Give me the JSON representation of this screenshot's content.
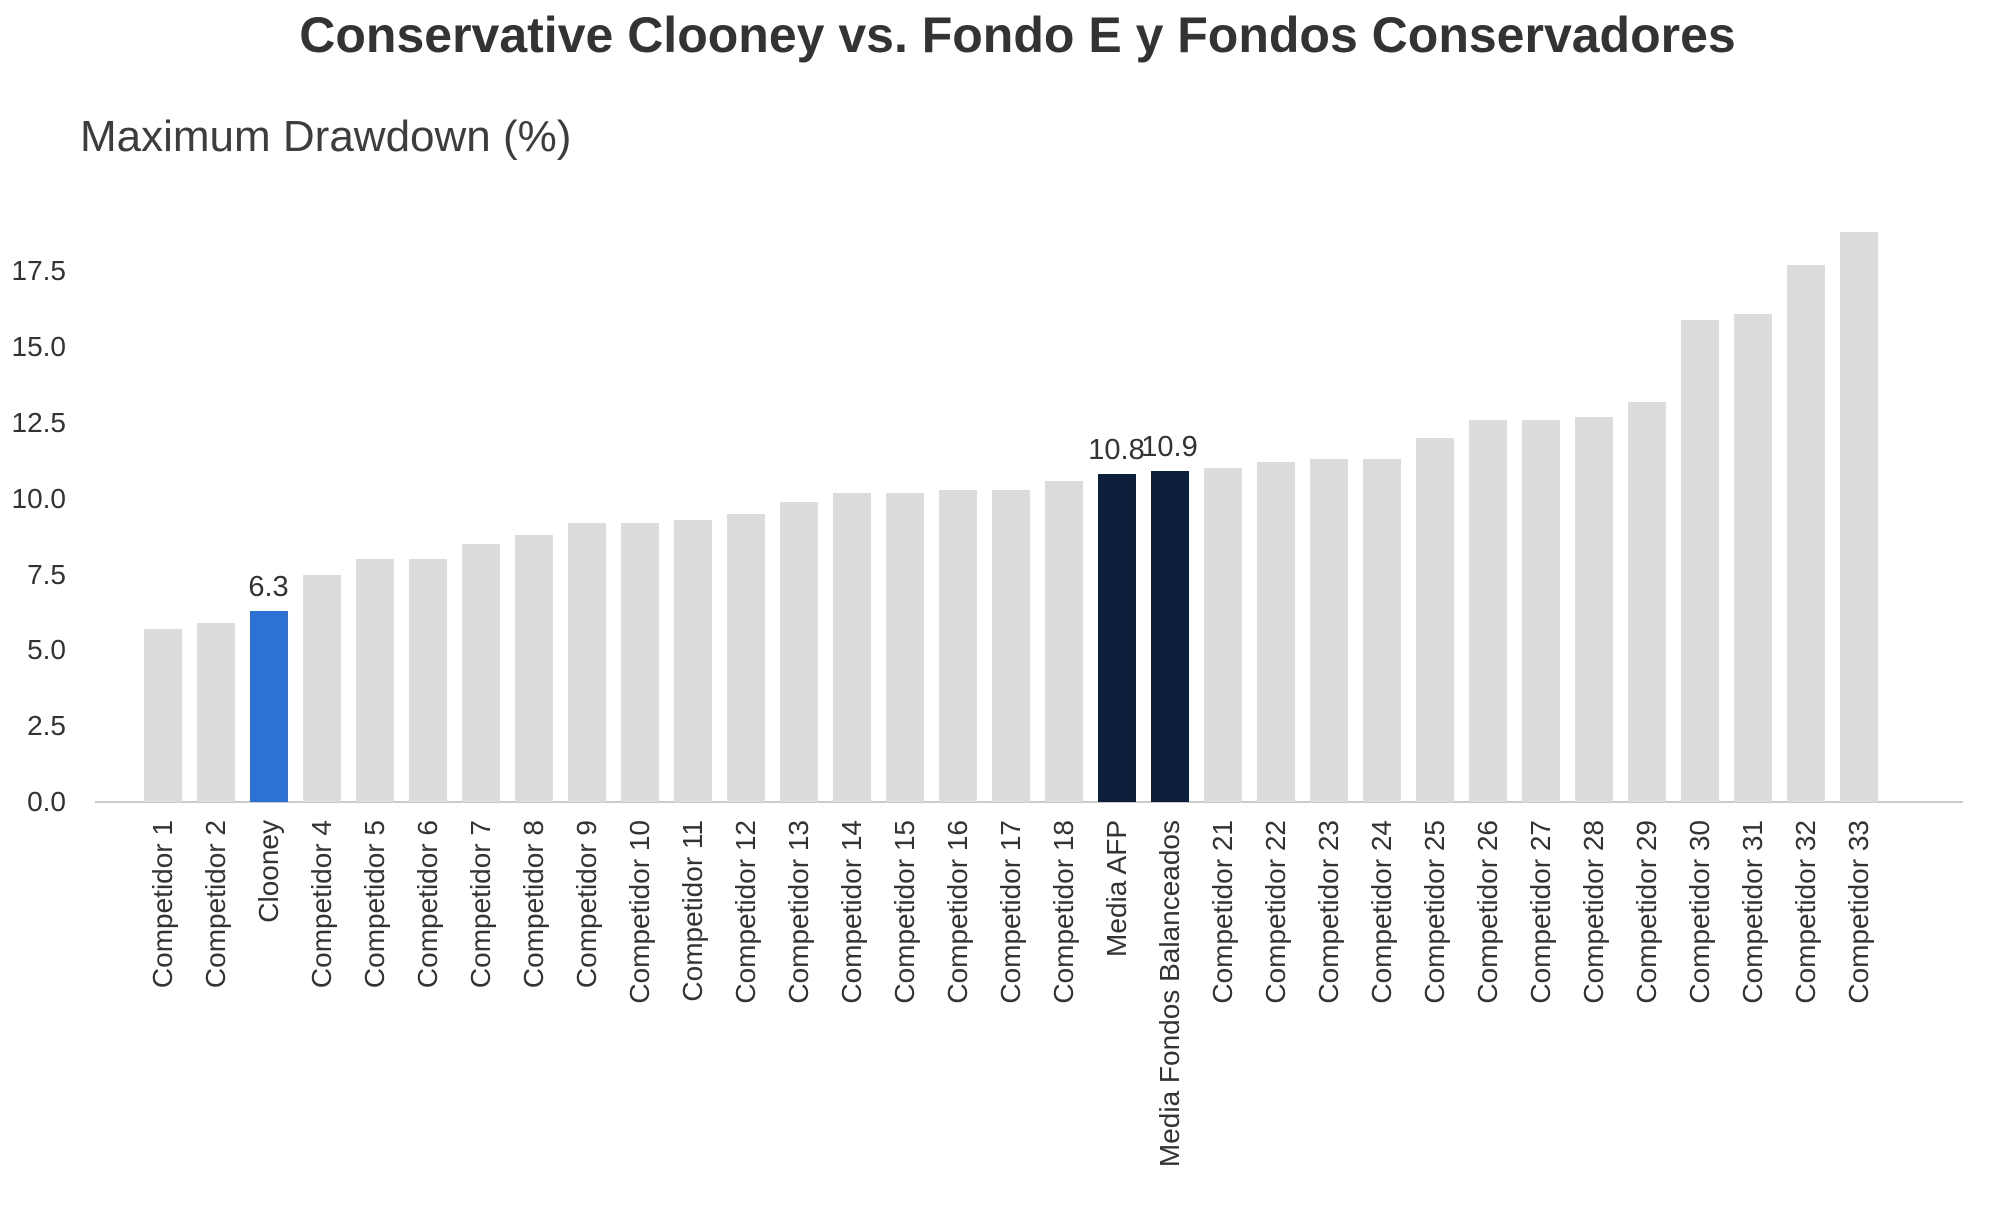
{
  "title": "Conservative Clooney vs. Fondo E y Fondos Conservadores",
  "y_axis_label": "Maximum Drawdown (%)",
  "chart_data": {
    "type": "bar",
    "title": "Conservative Clooney vs. Fondo E y Fondos Conservadores",
    "ylabel": "Maximum Drawdown (%)",
    "xlabel": "",
    "categories": [
      "Competidor 1",
      "Competidor 2",
      "Clooney",
      "Competidor 4",
      "Competidor 5",
      "Competidor 6",
      "Competidor 7",
      "Competidor 8",
      "Competidor 9",
      "Competidor 10",
      "Competidor 11",
      "Competidor 12",
      "Competidor 13",
      "Competidor 14",
      "Competidor 15",
      "Competidor 16",
      "Competidor 17",
      "Competidor 18",
      "Media AFP",
      "Media Fondos Balanceados",
      "Competidor 21",
      "Competidor 22",
      "Competidor 23",
      "Competidor 24",
      "Competidor 25",
      "Competidor 26",
      "Competidor 27",
      "Competidor 28",
      "Competidor 29",
      "Competidor 30",
      "Competidor 31",
      "Competidor 32",
      "Competidor 33"
    ],
    "values": [
      5.7,
      5.9,
      6.3,
      7.5,
      8.0,
      8.0,
      8.5,
      8.8,
      9.2,
      9.2,
      9.3,
      9.5,
      9.9,
      10.2,
      10.2,
      10.3,
      10.3,
      10.6,
      10.8,
      10.9,
      11.0,
      11.2,
      11.3,
      11.3,
      12.0,
      12.6,
      12.6,
      12.7,
      13.2,
      15.9,
      16.1,
      17.7,
      18.8
    ],
    "value_labels": {
      "Clooney": "6.3",
      "Media AFP": "10.8",
      "Media Fondos Balanceados": "10.9"
    },
    "bar_colors": {
      "default": "#dcdcdc",
      "Clooney": "#2d71d4",
      "Media AFP": "#0d1e3a",
      "Media Fondos Balanceados": "#0d1e3a"
    },
    "ytick_labels": [
      "0.0",
      "2.5",
      "5.0",
      "7.5",
      "10.0",
      "12.5",
      "15.0",
      "17.5"
    ],
    "ylim": [
      0,
      19.3
    ],
    "grid": false,
    "legend": null,
    "text_color": "#333333",
    "axis_line_color": "#cbcbcb"
  }
}
